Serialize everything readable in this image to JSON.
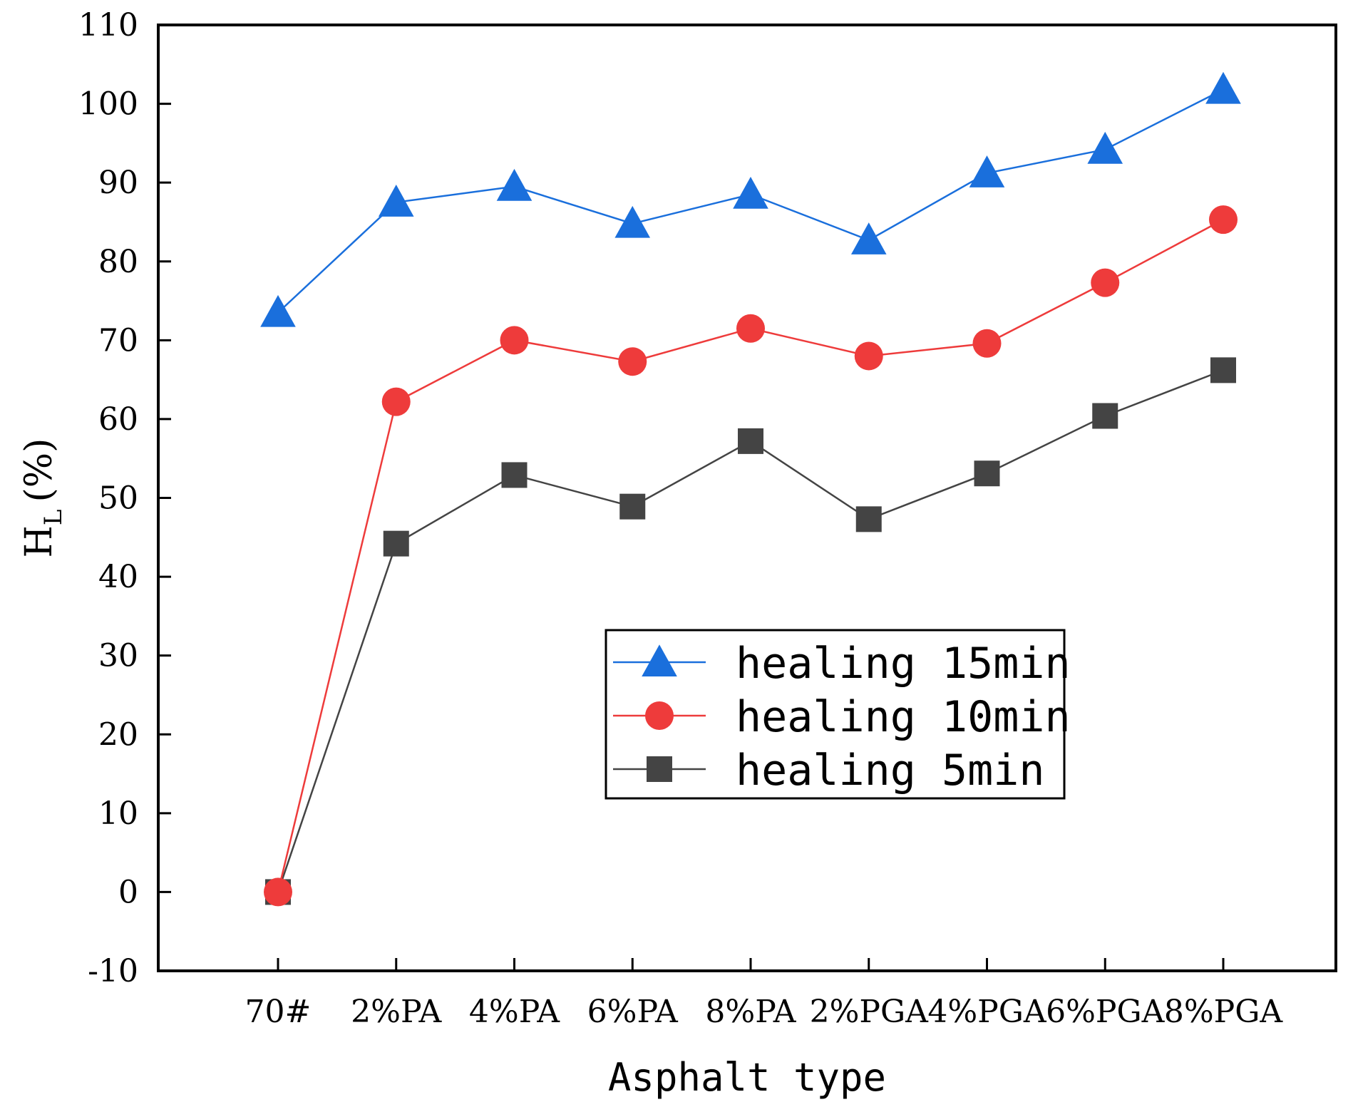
{
  "chart_data": {
    "type": "line",
    "title": "",
    "xlabel": "Asphalt type",
    "ylabel_main": "H",
    "ylabel_sub": "L",
    "ylabel_unit": "(%)",
    "ylim": [
      -10,
      110
    ],
    "yticks": [
      -10,
      0,
      10,
      20,
      30,
      40,
      50,
      60,
      70,
      80,
      90,
      100,
      110
    ],
    "categories": [
      "70#",
      "2%PA",
      "4%PA",
      "6%PA",
      "8%PA",
      "2%PGA",
      "4%PGA",
      "6%PGA",
      "8%PGA"
    ],
    "legend_position": "center-right",
    "series": [
      {
        "name": "healing 15min",
        "marker": "triangle",
        "color": "#1a6fdc",
        "values": [
          73.5,
          87.5,
          89.5,
          84.8,
          88.5,
          82.7,
          91.2,
          94.2,
          101.8
        ]
      },
      {
        "name": "healing 10min",
        "marker": "circle",
        "color": "#ee3b3b",
        "values": [
          0,
          62.2,
          70.0,
          67.3,
          71.5,
          68.0,
          69.6,
          77.3,
          85.3
        ]
      },
      {
        "name": "healing 5min",
        "marker": "square",
        "color": "#444444",
        "values": [
          0,
          44.2,
          52.9,
          48.9,
          57.2,
          47.3,
          53.1,
          60.4,
          66.2
        ]
      }
    ]
  }
}
